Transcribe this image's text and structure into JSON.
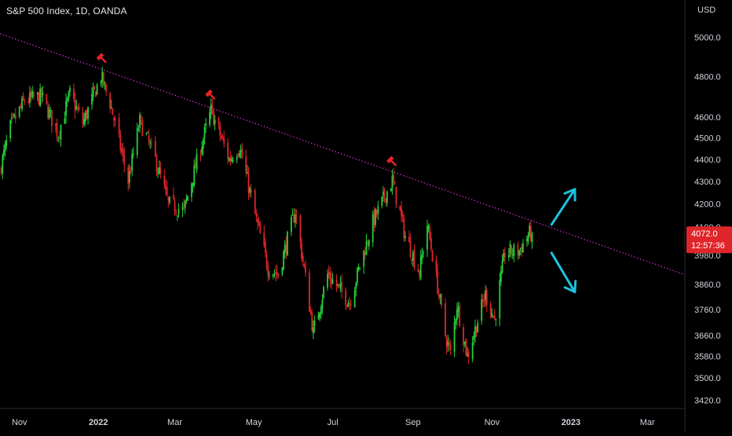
{
  "header": {
    "title": "S&P 500 Index, 1D, OANDA"
  },
  "axis": {
    "currency_label": "USD"
  },
  "colors": {
    "background": "#000000",
    "bull": "#26d03a",
    "bear": "#e0252a",
    "trendline": "#cc33cc",
    "arrow": "#1ec1e0",
    "marker": "#e8232a",
    "price_badge": "#e0252a",
    "axis_text": "#d1d4dc"
  },
  "price_badge": {
    "value": "4072.0",
    "countdown": "12:57:36"
  },
  "chart_data": {
    "type": "candlestick",
    "instrument": "S&P 500 Index",
    "interval": "1D",
    "source": "OANDA",
    "y_ticks": [
      5000,
      4800,
      4600,
      4500,
      4400,
      4300,
      4200,
      4100,
      3980,
      3860,
      3760,
      3660,
      3580,
      3500,
      3420
    ],
    "y_tick_labels": [
      "5000.0",
      "4800.0",
      "4600.0",
      "4500.0",
      "4400.0",
      "4300.0",
      "4200.0",
      "4100.0",
      "3980.0",
      "3860.0",
      "3760.0",
      "3660.0",
      "3580.0",
      "3500.0",
      "3420.0"
    ],
    "y_scale": "log",
    "ylim": [
      3390,
      5200
    ],
    "x_ticks": [
      "2021-11-01",
      "2022-01-01",
      "2022-03-01",
      "2022-05-01",
      "2022-07-01",
      "2022-09-01",
      "2022-11-01",
      "2023-01-01",
      "2023-03-01"
    ],
    "x_tick_labels": [
      "Nov",
      "2022",
      "Mar",
      "May",
      "Jul",
      "Sep",
      "Nov",
      "2023",
      "Mar"
    ],
    "xlim": [
      "2021-10-17",
      "2023-03-30"
    ],
    "price_path": [
      {
        "date": "2021-10-17",
        "close": 4350
      },
      {
        "date": "2021-10-25",
        "close": 4550
      },
      {
        "date": "2021-11-05",
        "close": 4680
      },
      {
        "date": "2021-11-18",
        "close": 4700
      },
      {
        "date": "2021-12-01",
        "close": 4520
      },
      {
        "date": "2021-12-10",
        "close": 4710
      },
      {
        "date": "2021-12-20",
        "close": 4570
      },
      {
        "date": "2022-01-03",
        "close": 4800
      },
      {
        "date": "2022-01-10",
        "close": 4670
      },
      {
        "date": "2022-01-24",
        "close": 4300
      },
      {
        "date": "2022-02-02",
        "close": 4580
      },
      {
        "date": "2022-02-14",
        "close": 4400
      },
      {
        "date": "2022-02-24",
        "close": 4200
      },
      {
        "date": "2022-03-08",
        "close": 4170
      },
      {
        "date": "2022-03-29",
        "close": 4630
      },
      {
        "date": "2022-04-12",
        "close": 4400
      },
      {
        "date": "2022-04-20",
        "close": 4460
      },
      {
        "date": "2022-05-02",
        "close": 4150
      },
      {
        "date": "2022-05-12",
        "close": 3930
      },
      {
        "date": "2022-05-20",
        "close": 3900
      },
      {
        "date": "2022-06-02",
        "close": 4170
      },
      {
        "date": "2022-06-16",
        "close": 3670
      },
      {
        "date": "2022-06-27",
        "close": 3900
      },
      {
        "date": "2022-07-14",
        "close": 3790
      },
      {
        "date": "2022-08-01",
        "close": 4120
      },
      {
        "date": "2022-08-16",
        "close": 4305
      },
      {
        "date": "2022-08-26",
        "close": 4060
      },
      {
        "date": "2022-09-06",
        "close": 3910
      },
      {
        "date": "2022-09-12",
        "close": 4110
      },
      {
        "date": "2022-09-26",
        "close": 3660
      },
      {
        "date": "2022-09-30",
        "close": 3590
      },
      {
        "date": "2022-10-05",
        "close": 3780
      },
      {
        "date": "2022-10-13",
        "close": 3580
      },
      {
        "date": "2022-10-27",
        "close": 3820
      },
      {
        "date": "2022-11-03",
        "close": 3720
      },
      {
        "date": "2022-11-11",
        "close": 3990
      },
      {
        "date": "2022-11-22",
        "close": 4000
      },
      {
        "date": "2022-11-30",
        "close": 4072
      },
      {
        "date": "2022-12-02",
        "close": 4072
      }
    ],
    "trendline": {
      "style": "dotted",
      "start": {
        "date": "2021-10-17",
        "price": 5020
      },
      "end": {
        "date": "2023-03-30",
        "price": 3900
      }
    },
    "touch_markers": [
      {
        "date": "2022-01-04",
        "price": 4818
      },
      {
        "date": "2022-03-29",
        "price": 4637
      },
      {
        "date": "2022-08-16",
        "price": 4325
      }
    ],
    "arrows": [
      {
        "direction": "up",
        "from": {
          "date": "2022-12-17",
          "price": 4110
        },
        "to": {
          "date": "2023-01-04",
          "price": 4265
        }
      },
      {
        "direction": "down",
        "from": {
          "date": "2022-12-17",
          "price": 3990
        },
        "to": {
          "date": "2023-01-04",
          "price": 3830
        }
      }
    ],
    "last_price": 4072.0
  }
}
